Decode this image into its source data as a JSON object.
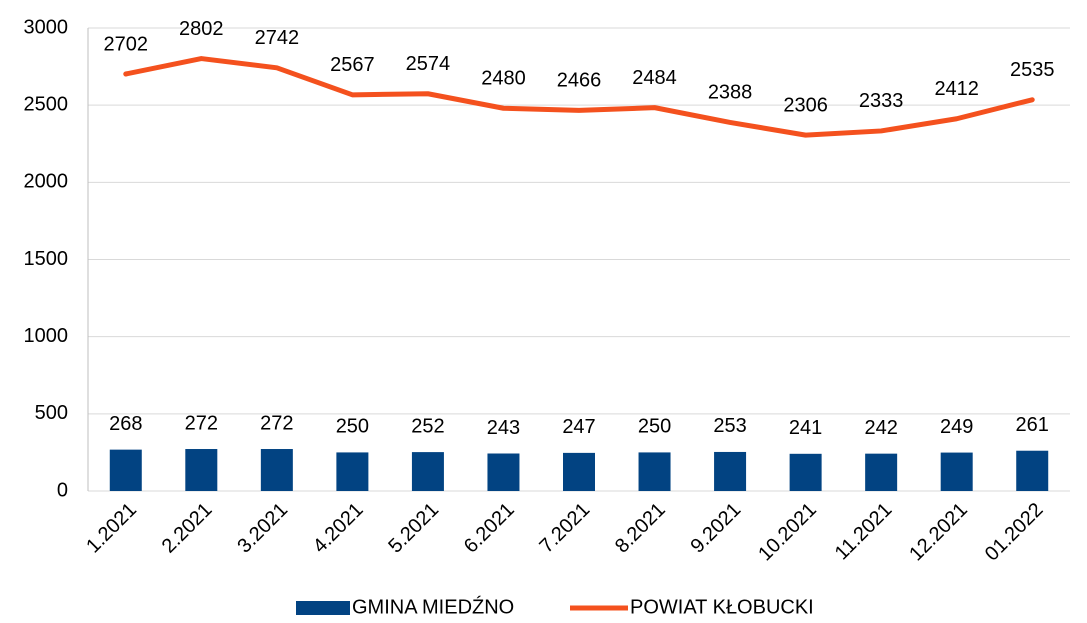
{
  "chart_data": {
    "type": "combo",
    "categories": [
      "1.2021",
      "2.2021",
      "3.2021",
      "4.2021",
      "5.2021",
      "6.2021",
      "7.2021",
      "8.2021",
      "9.2021",
      "10.2021",
      "11.2021",
      "12.2021",
      "01.2022"
    ],
    "series": [
      {
        "name": "GMINA MIEDŹNO",
        "type": "bar",
        "color": "#024382",
        "values": [
          268,
          272,
          272,
          250,
          252,
          243,
          247,
          250,
          253,
          241,
          242,
          249,
          261
        ]
      },
      {
        "name": "POWIAT KŁOBUCKI",
        "type": "line",
        "color": "#f4511e",
        "values": [
          2702,
          2802,
          2742,
          2567,
          2574,
          2480,
          2466,
          2484,
          2388,
          2306,
          2333,
          2412,
          2535
        ]
      }
    ],
    "ylim": [
      0,
      3000
    ],
    "yticks": [
      0,
      500,
      1000,
      1500,
      2000,
      2500,
      3000
    ],
    "grid": true,
    "legend": "bottom"
  }
}
